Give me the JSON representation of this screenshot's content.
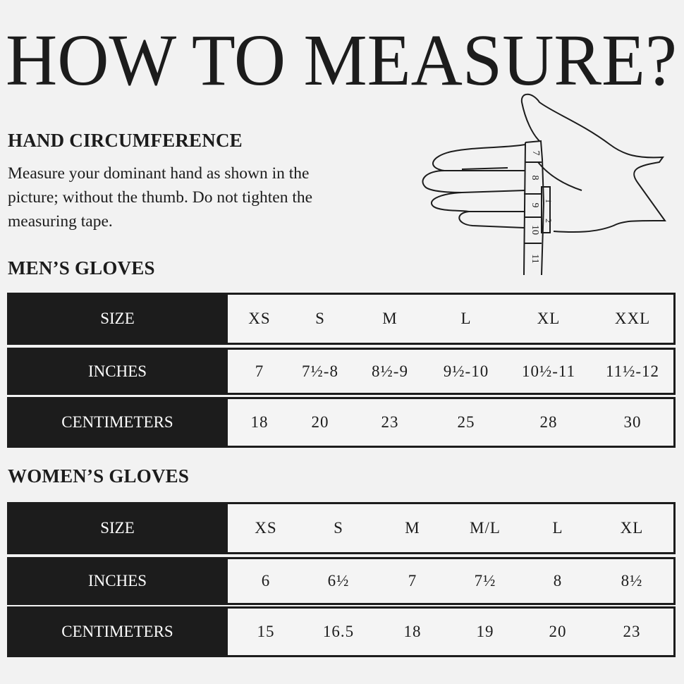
{
  "title": "HOW TO MEASURE?",
  "hand_circumference": {
    "heading": "HAND CIRCUMFERENCE",
    "lines": [
      "Measure your dominant hand as shown in the",
      "picture; without the thumb. Do not tighten the",
      "measuring tape."
    ]
  },
  "illustration": {
    "tape_numbers": [
      "7",
      "8",
      "9",
      "10",
      "11"
    ],
    "tape_end_numbers": [
      "1",
      "2"
    ]
  },
  "colors": {
    "background": "#f2f2f2",
    "dark": "#1c1c1c",
    "label_text": "#ffffff"
  },
  "mens": {
    "heading": "MEN’S GLOVES",
    "rows": [
      {
        "label": "SIZE",
        "values": [
          "XS",
          "S",
          "M",
          "L",
          "XL",
          "XXL"
        ]
      },
      {
        "label": "INCHES",
        "values": [
          "7",
          "7½-8",
          "8½-9",
          "9½-10",
          "10½-11",
          "11½-12"
        ]
      },
      {
        "label": "CENTIMETERS",
        "values": [
          "18",
          "20",
          "23",
          "25",
          "28",
          "30"
        ]
      }
    ]
  },
  "womens": {
    "heading": "WOMEN’S GLOVES",
    "rows": [
      {
        "label": "SIZE",
        "values": [
          "XS",
          "S",
          "M",
          "M/L",
          "L",
          "XL"
        ]
      },
      {
        "label": "INCHES",
        "values": [
          "6",
          "6½",
          "7",
          "7½",
          "8",
          "8½"
        ]
      },
      {
        "label": "CENTIMETERS",
        "values": [
          "15",
          "16.5",
          "18",
          "19",
          "20",
          "23"
        ]
      }
    ]
  }
}
